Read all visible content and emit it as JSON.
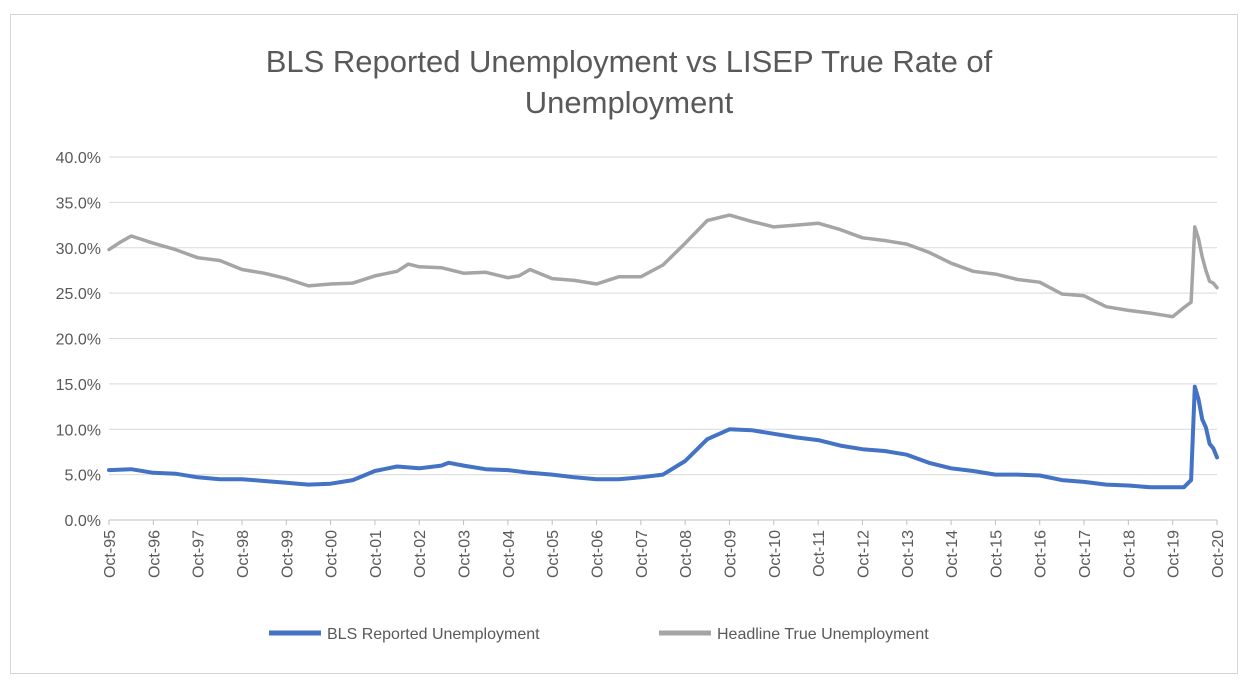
{
  "chart_data": {
    "type": "line",
    "title_lines": [
      "BLS Reported Unemployment vs LISEP True Rate of",
      "Unemployment"
    ],
    "xlabel": "",
    "ylabel": "",
    "ylim": [
      0,
      40
    ],
    "yticks": [
      "0.0%",
      "5.0%",
      "10.0%",
      "15.0%",
      "20.0%",
      "25.0%",
      "30.0%",
      "35.0%",
      "40.0%"
    ],
    "xticks": [
      "Oct-95",
      "Oct-96",
      "Oct-97",
      "Oct-98",
      "Oct-99",
      "Oct-00",
      "Oct-01",
      "Oct-02",
      "Oct-03",
      "Oct-04",
      "Oct-05",
      "Oct-06",
      "Oct-07",
      "Oct-08",
      "Oct-09",
      "Oct-10",
      "Oct-11",
      "Oct-12",
      "Oct-13",
      "Oct-14",
      "Oct-15",
      "Oct-16",
      "Oct-17",
      "Oct-18",
      "Oct-19",
      "Oct-20"
    ],
    "grid": true,
    "legend_position": "bottom",
    "series": [
      {
        "name": "BLS Reported Unemployment",
        "color": "#4472c4",
        "points": [
          [
            "1995-10",
            5.5
          ],
          [
            "1996-04",
            5.6
          ],
          [
            "1996-10",
            5.2
          ],
          [
            "1997-04",
            5.1
          ],
          [
            "1997-10",
            4.7
          ],
          [
            "1998-04",
            4.5
          ],
          [
            "1998-10",
            4.5
          ],
          [
            "1999-04",
            4.3
          ],
          [
            "1999-10",
            4.1
          ],
          [
            "2000-04",
            3.9
          ],
          [
            "2000-10",
            4.0
          ],
          [
            "2001-04",
            4.4
          ],
          [
            "2001-10",
            5.4
          ],
          [
            "2002-04",
            5.9
          ],
          [
            "2002-10",
            5.7
          ],
          [
            "2003-04",
            6.0
          ],
          [
            "2003-06",
            6.3
          ],
          [
            "2003-10",
            6.0
          ],
          [
            "2004-04",
            5.6
          ],
          [
            "2004-10",
            5.5
          ],
          [
            "2005-04",
            5.2
          ],
          [
            "2005-10",
            5.0
          ],
          [
            "2006-04",
            4.7
          ],
          [
            "2006-10",
            4.5
          ],
          [
            "2007-04",
            4.5
          ],
          [
            "2007-10",
            4.7
          ],
          [
            "2008-04",
            5.0
          ],
          [
            "2008-10",
            6.5
          ],
          [
            "2009-04",
            8.9
          ],
          [
            "2009-10",
            10.0
          ],
          [
            "2010-04",
            9.9
          ],
          [
            "2010-10",
            9.5
          ],
          [
            "2011-04",
            9.1
          ],
          [
            "2011-10",
            8.8
          ],
          [
            "2012-04",
            8.2
          ],
          [
            "2012-10",
            7.8
          ],
          [
            "2013-04",
            7.6
          ],
          [
            "2013-10",
            7.2
          ],
          [
            "2014-04",
            6.3
          ],
          [
            "2014-10",
            5.7
          ],
          [
            "2015-04",
            5.4
          ],
          [
            "2015-10",
            5.0
          ],
          [
            "2016-04",
            5.0
          ],
          [
            "2016-10",
            4.9
          ],
          [
            "2017-04",
            4.4
          ],
          [
            "2017-10",
            4.2
          ],
          [
            "2018-04",
            3.9
          ],
          [
            "2018-10",
            3.8
          ],
          [
            "2019-04",
            3.6
          ],
          [
            "2019-10",
            3.6
          ],
          [
            "2020-01",
            3.6
          ],
          [
            "2020-03",
            4.4
          ],
          [
            "2020-04",
            14.7
          ],
          [
            "2020-05",
            13.3
          ],
          [
            "2020-06",
            11.1
          ],
          [
            "2020-07",
            10.2
          ],
          [
            "2020-08",
            8.4
          ],
          [
            "2020-09",
            7.9
          ],
          [
            "2020-10",
            6.9
          ]
        ]
      },
      {
        "name": "Headline True Unemployment",
        "color": "#a5a5a5",
        "points": [
          [
            "1995-10",
            29.8
          ],
          [
            "1996-01",
            30.6
          ],
          [
            "1996-04",
            31.3
          ],
          [
            "1996-10",
            30.5
          ],
          [
            "1997-04",
            29.8
          ],
          [
            "1997-10",
            28.9
          ],
          [
            "1998-04",
            28.6
          ],
          [
            "1998-10",
            27.6
          ],
          [
            "1999-04",
            27.2
          ],
          [
            "1999-10",
            26.6
          ],
          [
            "2000-04",
            25.8
          ],
          [
            "2000-10",
            26.0
          ],
          [
            "2001-04",
            26.1
          ],
          [
            "2001-10",
            26.9
          ],
          [
            "2002-04",
            27.4
          ],
          [
            "2002-07",
            28.2
          ],
          [
            "2002-10",
            27.9
          ],
          [
            "2003-04",
            27.8
          ],
          [
            "2003-10",
            27.2
          ],
          [
            "2004-04",
            27.3
          ],
          [
            "2004-10",
            26.7
          ],
          [
            "2005-01",
            26.9
          ],
          [
            "2005-04",
            27.6
          ],
          [
            "2005-10",
            26.6
          ],
          [
            "2006-04",
            26.4
          ],
          [
            "2006-10",
            26.0
          ],
          [
            "2007-04",
            26.8
          ],
          [
            "2007-10",
            26.8
          ],
          [
            "2008-04",
            28.1
          ],
          [
            "2008-10",
            30.5
          ],
          [
            "2009-04",
            33.0
          ],
          [
            "2009-10",
            33.6
          ],
          [
            "2010-04",
            32.9
          ],
          [
            "2010-10",
            32.3
          ],
          [
            "2011-04",
            32.5
          ],
          [
            "2011-10",
            32.7
          ],
          [
            "2012-04",
            32.0
          ],
          [
            "2012-10",
            31.1
          ],
          [
            "2013-04",
            30.8
          ],
          [
            "2013-10",
            30.4
          ],
          [
            "2014-04",
            29.5
          ],
          [
            "2014-10",
            28.3
          ],
          [
            "2015-04",
            27.4
          ],
          [
            "2015-10",
            27.1
          ],
          [
            "2016-04",
            26.5
          ],
          [
            "2016-10",
            26.2
          ],
          [
            "2017-04",
            24.9
          ],
          [
            "2017-10",
            24.7
          ],
          [
            "2018-04",
            23.5
          ],
          [
            "2018-10",
            23.1
          ],
          [
            "2019-04",
            22.8
          ],
          [
            "2019-10",
            22.4
          ],
          [
            "2020-01",
            23.4
          ],
          [
            "2020-03",
            24.0
          ],
          [
            "2020-04",
            32.3
          ],
          [
            "2020-05",
            31.0
          ],
          [
            "2020-06",
            29.0
          ],
          [
            "2020-07",
            27.5
          ],
          [
            "2020-08",
            26.3
          ],
          [
            "2020-09",
            26.1
          ],
          [
            "2020-10",
            25.6
          ]
        ]
      }
    ]
  }
}
